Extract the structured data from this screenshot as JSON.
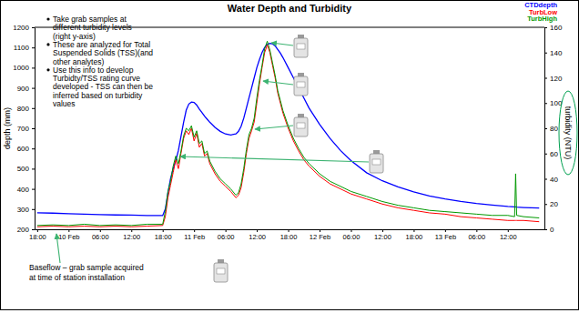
{
  "chart_data": {
    "type": "line",
    "title": "Water Depth and Turbidity",
    "y_label": "depth (mm)",
    "y2_label": "turbidity (NTU)",
    "legend": "upper right",
    "x": [
      0,
      3,
      6,
      9,
      12,
      15,
      18,
      21,
      24,
      24.5,
      25,
      25.5,
      26,
      26.5,
      27,
      27.5,
      28,
      28.5,
      29,
      29.5,
      30,
      30.5,
      31,
      31.5,
      32,
      32.5,
      33,
      34,
      35,
      36,
      37,
      38,
      38.5,
      39,
      39.5,
      40,
      40.5,
      41,
      41.5,
      42,
      42.5,
      43,
      43.5,
      44,
      44.5,
      45,
      45.5,
      46,
      46.5,
      47,
      48,
      49,
      50,
      51,
      52,
      54,
      56,
      58,
      60,
      63,
      66,
      69,
      72,
      75,
      78,
      81,
      84,
      87,
      90,
      91.3,
      91.5,
      91.7,
      93,
      96
    ],
    "xlim": [
      -0.5,
      97
    ],
    "xticks": [
      {
        "value": 0,
        "label": "18:00"
      },
      {
        "value": 6,
        "label": "10 Feb"
      },
      {
        "value": 12,
        "label": "06:00"
      },
      {
        "value": 18,
        "label": "12:00"
      },
      {
        "value": 24,
        "label": "18:00"
      },
      {
        "value": 30,
        "label": "11 Feb"
      },
      {
        "value": 36,
        "label": "06:00"
      },
      {
        "value": 42,
        "label": "12:00"
      },
      {
        "value": 48,
        "label": "18:00"
      },
      {
        "value": 54,
        "label": "12 Feb"
      },
      {
        "value": 60,
        "label": "06:00"
      },
      {
        "value": 66,
        "label": "12:00"
      },
      {
        "value": 72,
        "label": "18:00"
      },
      {
        "value": 78,
        "label": "13 Feb"
      },
      {
        "value": 84,
        "label": "06:00"
      },
      {
        "value": 90,
        "label": "12:00"
      }
    ],
    "ylim": [
      200,
      1200
    ],
    "yticks": [
      200,
      300,
      400,
      500,
      600,
      700,
      800,
      900,
      1000,
      1100,
      1200
    ],
    "y2lim": [
      0,
      160
    ],
    "y2ticks": [
      0,
      20,
      40,
      60,
      80,
      100,
      120,
      140,
      160
    ],
    "series": [
      {
        "name": "CTDdepth",
        "color": "#0000ff",
        "values": [
          282,
          280,
          277,
          275,
          273,
          271,
          270,
          268,
          268,
          300,
          380,
          450,
          500,
          540,
          590,
          660,
          730,
          790,
          820,
          830,
          828,
          815,
          795,
          778,
          760,
          745,
          730,
          705,
          685,
          672,
          667,
          672,
          685,
          710,
          750,
          800,
          850,
          900,
          950,
          1000,
          1040,
          1075,
          1100,
          1115,
          1120,
          1118,
          1108,
          1090,
          1072,
          1050,
          1000,
          950,
          900,
          850,
          800,
          720,
          650,
          590,
          540,
          480,
          440,
          410,
          385,
          365,
          350,
          338,
          328,
          320,
          313,
          311,
          311,
          310,
          308,
          305
        ]
      },
      {
        "name": "TurbLow",
        "color": "#ff0000",
        "axis": "y2",
        "values": [
          2,
          2.5,
          2,
          2.5,
          2,
          2.5,
          2,
          2.5,
          3,
          10,
          25,
          35,
          45,
          55,
          48,
          60,
          72,
          78,
          75,
          80,
          70,
          76,
          65,
          68,
          58,
          60,
          52,
          44,
          38,
          34,
          30,
          25,
          27,
          33,
          45,
          60,
          72,
          78,
          85,
          100,
          115,
          128,
          140,
          146,
          140,
          130,
          120,
          108,
          100,
          92,
          80,
          70,
          62,
          55,
          50,
          42,
          36,
          32,
          28,
          24,
          20,
          17,
          15,
          13,
          12,
          10,
          9,
          8,
          7,
          7,
          7,
          7,
          7,
          6
        ]
      },
      {
        "name": "TurbHigh",
        "color": "#009900",
        "axis": "y2",
        "values": [
          3,
          3.5,
          3,
          4,
          3,
          3.5,
          3,
          4,
          4,
          14,
          30,
          38,
          50,
          58,
          52,
          62,
          74,
          80,
          78,
          82,
          73,
          78,
          68,
          70,
          60,
          62,
          54,
          46,
          40,
          36,
          32,
          27,
          29,
          36,
          48,
          63,
          75,
          80,
          88,
          104,
          118,
          130,
          143,
          149,
          142,
          132,
          122,
          110,
          102,
          94,
          82,
          72,
          64,
          57,
          52,
          44,
          38,
          34,
          30,
          26,
          22,
          19,
          17,
          15,
          14,
          13,
          12,
          11,
          11,
          10,
          44,
          11,
          10,
          9
        ]
      }
    ],
    "annotations": {
      "bullets": [
        [
          "Take grab samples at",
          "different turbidity levels",
          "(right y-axis)"
        ],
        [
          "These are analyzed for Total",
          "Suspended Solids (TSS)(and",
          "other analytes)"
        ],
        [
          "Use this info to develop",
          "Turbidty/TSS rating curve",
          "developed - TSS can then be",
          "inferred based on turbidity",
          "values"
        ]
      ],
      "baseflow": [
        "Baseflow – grab sample acquired",
        "at time of station installation"
      ]
    }
  }
}
